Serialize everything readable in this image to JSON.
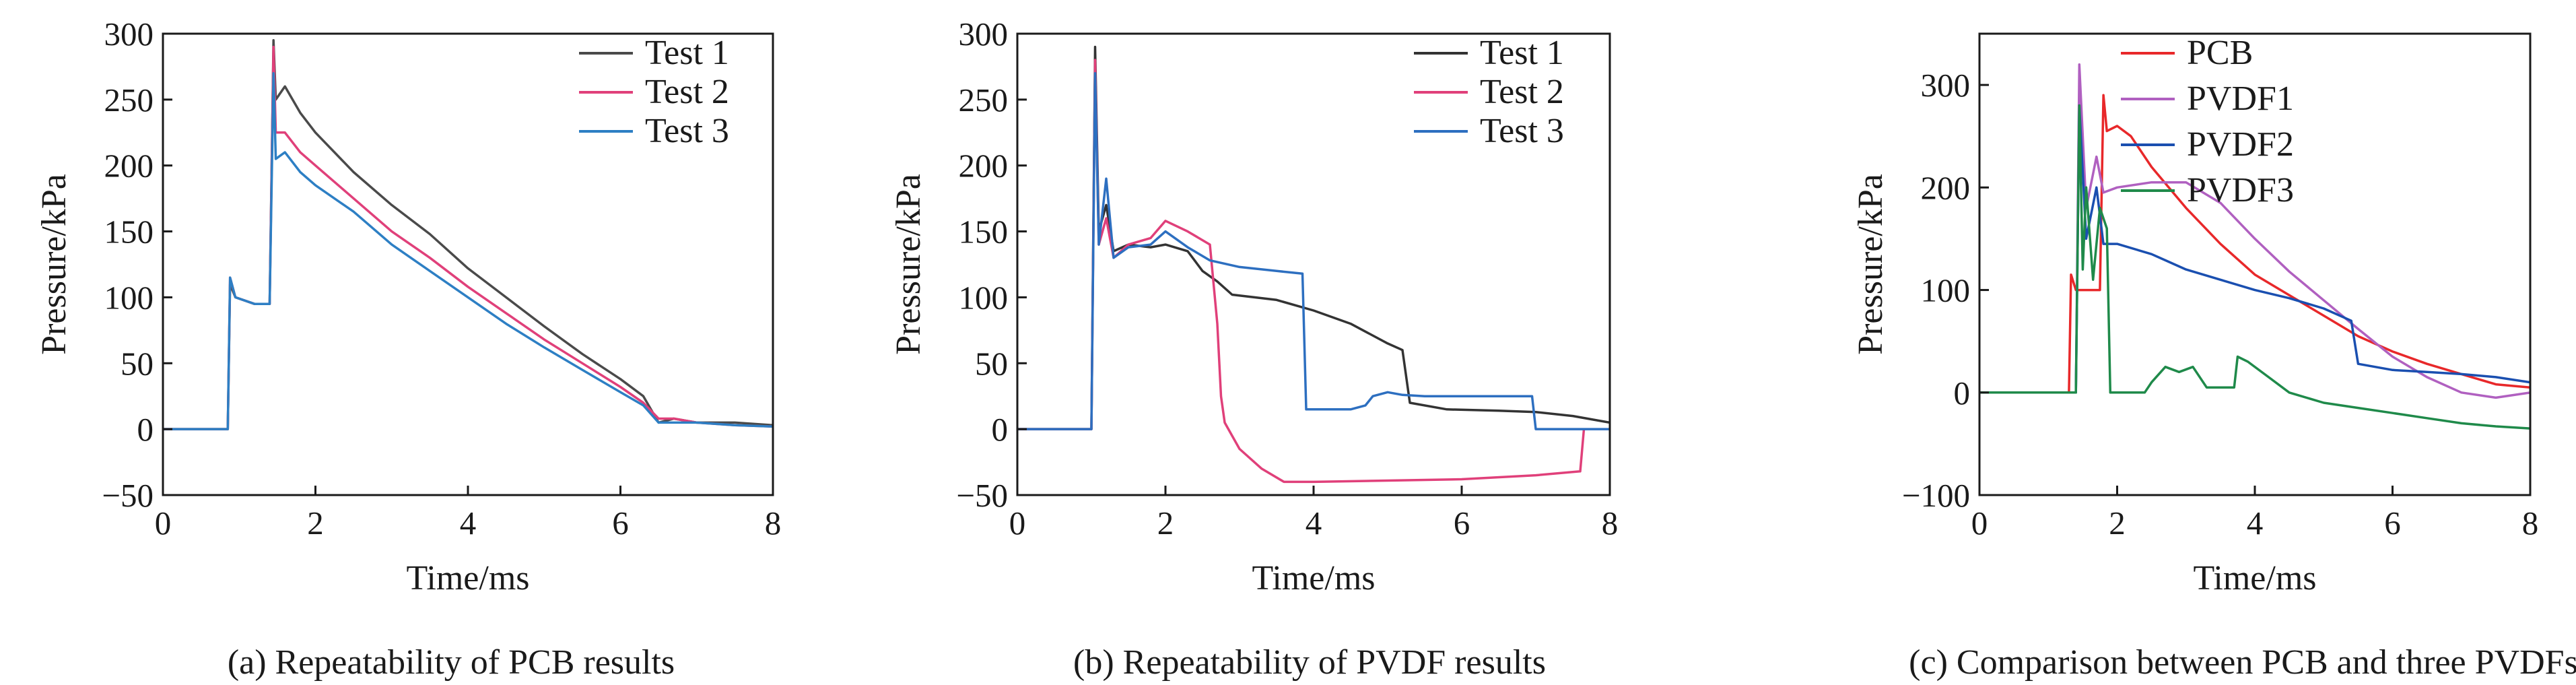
{
  "chart_data": [
    {
      "type": "line",
      "caption": "(a) Repeatability of PCB results",
      "xlabel": "Time/ms",
      "ylabel": "Pressure/kPa",
      "xlim": [
        0,
        8
      ],
      "ylim": [
        -50,
        300
      ],
      "xticks": [
        0,
        2,
        4,
        6,
        8
      ],
      "yticks": [
        -50,
        0,
        50,
        100,
        150,
        200,
        250,
        300
      ],
      "legend_position": "top-right",
      "grid": false,
      "series": [
        {
          "name": "Test 1",
          "color": "#4a4a4a",
          "x": [
            0,
            0.85,
            0.88,
            0.95,
            1.2,
            1.4,
            1.45,
            1.48,
            1.6,
            1.8,
            2.0,
            2.5,
            3.0,
            3.5,
            4.0,
            4.5,
            5.0,
            5.5,
            6.0,
            6.3,
            6.5,
            6.7,
            7.0,
            7.5,
            8.0
          ],
          "y": [
            0,
            0,
            110,
            100,
            95,
            95,
            295,
            250,
            260,
            240,
            225,
            195,
            170,
            148,
            122,
            100,
            78,
            57,
            38,
            25,
            5,
            8,
            5,
            5,
            3
          ]
        },
        {
          "name": "Test 2",
          "color": "#e0407a",
          "x": [
            0,
            0.85,
            0.88,
            0.95,
            1.2,
            1.4,
            1.45,
            1.48,
            1.6,
            1.8,
            2.0,
            2.5,
            3.0,
            3.5,
            4.0,
            4.5,
            5.0,
            5.5,
            6.0,
            6.3,
            6.5,
            6.7,
            7.0,
            7.5,
            8.0
          ],
          "y": [
            0,
            0,
            115,
            100,
            95,
            95,
            290,
            225,
            225,
            210,
            200,
            175,
            150,
            130,
            108,
            88,
            68,
            50,
            32,
            20,
            8,
            8,
            5,
            3,
            2
          ]
        },
        {
          "name": "Test 3",
          "color": "#2d7fc4",
          "x": [
            0,
            0.85,
            0.88,
            0.95,
            1.2,
            1.4,
            1.45,
            1.48,
            1.6,
            1.8,
            2.0,
            2.5,
            3.0,
            3.5,
            4.0,
            4.5,
            5.0,
            5.5,
            6.0,
            6.3,
            6.5,
            6.7,
            7.0,
            7.5,
            8.0
          ],
          "y": [
            0,
            0,
            115,
            100,
            95,
            95,
            270,
            205,
            210,
            195,
            185,
            165,
            140,
            120,
            100,
            80,
            62,
            45,
            28,
            18,
            5,
            5,
            5,
            3,
            2
          ]
        }
      ]
    },
    {
      "type": "line",
      "caption": "(b) Repeatability of PVDF results",
      "xlabel": "Time/ms",
      "ylabel": "Pressure/kPa",
      "xlim": [
        0,
        8
      ],
      "ylim": [
        -50,
        300
      ],
      "xticks": [
        0,
        2,
        4,
        6,
        8
      ],
      "yticks": [
        -50,
        0,
        50,
        100,
        150,
        200,
        250,
        300
      ],
      "legend_position": "top-right",
      "grid": false,
      "series": [
        {
          "name": "Test 1",
          "color": "#333333",
          "x": [
            0,
            1.0,
            1.05,
            1.1,
            1.2,
            1.3,
            1.5,
            1.8,
            2.0,
            2.3,
            2.5,
            2.7,
            2.9,
            3.2,
            3.5,
            4.0,
            4.5,
            5.0,
            5.2,
            5.3,
            5.8,
            6.5,
            7.0,
            7.5,
            8.0
          ],
          "y": [
            0,
            0,
            290,
            150,
            170,
            135,
            140,
            138,
            140,
            135,
            120,
            112,
            102,
            100,
            98,
            90,
            80,
            65,
            60,
            20,
            15,
            14,
            13,
            10,
            5
          ]
        },
        {
          "name": "Test 2",
          "color": "#e0407a",
          "x": [
            0,
            1.0,
            1.05,
            1.1,
            1.2,
            1.3,
            1.5,
            1.8,
            2.0,
            2.3,
            2.6,
            2.7,
            2.75,
            2.8,
            3.0,
            3.3,
            3.6,
            4.0,
            5.0,
            6.0,
            7.0,
            7.6,
            7.65
          ],
          "y": [
            0,
            0,
            280,
            140,
            160,
            130,
            140,
            145,
            158,
            150,
            140,
            80,
            25,
            5,
            -15,
            -30,
            -40,
            -40,
            -39,
            -38,
            -35,
            -32,
            0
          ]
        },
        {
          "name": "Test 3",
          "color": "#2d6fc0",
          "x": [
            0,
            1.0,
            1.05,
            1.1,
            1.2,
            1.3,
            1.5,
            1.8,
            2.0,
            2.3,
            2.6,
            3.0,
            3.5,
            3.85,
            3.9,
            4.2,
            4.5,
            4.7,
            4.8,
            5.0,
            5.2,
            5.5,
            6.0,
            6.5,
            6.95,
            7.0,
            8.0
          ],
          "y": [
            0,
            0,
            270,
            140,
            190,
            130,
            138,
            140,
            150,
            138,
            128,
            123,
            120,
            118,
            15,
            15,
            15,
            18,
            25,
            28,
            26,
            25,
            25,
            25,
            25,
            0,
            0
          ]
        }
      ]
    },
    {
      "type": "line",
      "caption": "(c) Comparison between PCB and three PVDFs",
      "xlabel": "Time/ms",
      "ylabel": "Pressure/kPa",
      "xlim": [
        0,
        8
      ],
      "ylim": [
        -100,
        350
      ],
      "xticks": [
        0,
        2,
        4,
        6,
        8
      ],
      "yticks": [
        -100,
        0,
        100,
        200,
        300
      ],
      "legend_position": "top-right",
      "grid": false,
      "series": [
        {
          "name": "PCB",
          "color": "#e8282a",
          "x": [
            0,
            1.3,
            1.33,
            1.4,
            1.6,
            1.75,
            1.8,
            1.85,
            2.0,
            2.2,
            2.5,
            3.0,
            3.5,
            4.0,
            4.5,
            5.0,
            5.5,
            6.0,
            6.5,
            7.0,
            7.5,
            8.0
          ],
          "y": [
            0,
            0,
            115,
            100,
            100,
            100,
            290,
            255,
            260,
            250,
            220,
            180,
            145,
            115,
            95,
            75,
            55,
            40,
            28,
            18,
            8,
            5
          ]
        },
        {
          "name": "PVDF1",
          "color": "#b060c0",
          "x": [
            0,
            1.4,
            1.45,
            1.55,
            1.7,
            1.8,
            2.0,
            2.5,
            3.0,
            3.5,
            4.0,
            4.5,
            5.0,
            5.5,
            6.0,
            6.5,
            7.0,
            7.5,
            8.0
          ],
          "y": [
            0,
            0,
            320,
            180,
            230,
            195,
            200,
            205,
            205,
            185,
            150,
            118,
            90,
            62,
            35,
            15,
            0,
            -5,
            0
          ]
        },
        {
          "name": "PVDF2",
          "color": "#1a4fb0",
          "x": [
            0,
            1.4,
            1.45,
            1.55,
            1.7,
            1.8,
            2.0,
            2.5,
            3.0,
            3.5,
            4.0,
            4.5,
            5.0,
            5.4,
            5.5,
            6.0,
            6.5,
            7.0,
            7.5,
            8.0
          ],
          "y": [
            0,
            0,
            280,
            150,
            200,
            145,
            145,
            135,
            120,
            110,
            100,
            92,
            82,
            70,
            28,
            22,
            20,
            18,
            15,
            10
          ]
        },
        {
          "name": "PVDF3",
          "color": "#1f8a4a",
          "x": [
            0,
            1.4,
            1.45,
            1.5,
            1.55,
            1.65,
            1.75,
            1.85,
            1.9,
            2.0,
            2.4,
            2.5,
            2.7,
            2.9,
            3.1,
            3.3,
            3.7,
            3.75,
            3.9,
            4.2,
            4.5,
            5.0,
            5.5,
            6.0,
            6.5,
            7.0,
            7.5,
            8.0
          ],
          "y": [
            0,
            0,
            280,
            120,
            200,
            110,
            180,
            160,
            0,
            0,
            0,
            10,
            25,
            20,
            25,
            5,
            5,
            35,
            30,
            15,
            0,
            -10,
            -15,
            -20,
            -25,
            -30,
            -33,
            -35
          ]
        }
      ]
    }
  ]
}
